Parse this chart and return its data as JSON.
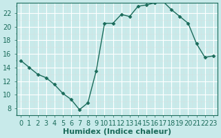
{
  "x": [
    0,
    1,
    2,
    3,
    4,
    5,
    6,
    7,
    8,
    9,
    10,
    11,
    12,
    13,
    14,
    15,
    16,
    17,
    18,
    19,
    20,
    21,
    22,
    23
  ],
  "y": [
    15.0,
    14.0,
    13.0,
    12.5,
    11.5,
    10.2,
    9.3,
    7.8,
    8.8,
    13.5,
    20.5,
    20.5,
    21.8,
    21.5,
    23.0,
    23.2,
    23.5,
    23.7,
    22.5,
    21.5,
    20.5,
    17.5,
    15.5,
    15.7
  ],
  "line_color": "#1a6b5a",
  "marker": "D",
  "marker_size": 2.5,
  "bg_color": "#c8eaea",
  "xlabel": "Humidex (Indice chaleur)",
  "xlim": [
    -0.5,
    23.5
  ],
  "ylim": [
    7,
    23.5
  ],
  "yticks": [
    8,
    10,
    12,
    14,
    16,
    18,
    20,
    22
  ],
  "xticks": [
    0,
    1,
    2,
    3,
    4,
    5,
    6,
    7,
    8,
    9,
    10,
    11,
    12,
    13,
    14,
    15,
    16,
    17,
    18,
    19,
    20,
    21,
    22,
    23
  ],
  "tick_color": "#1a6b5a",
  "label_fontsize": 7,
  "xlabel_fontsize": 8
}
